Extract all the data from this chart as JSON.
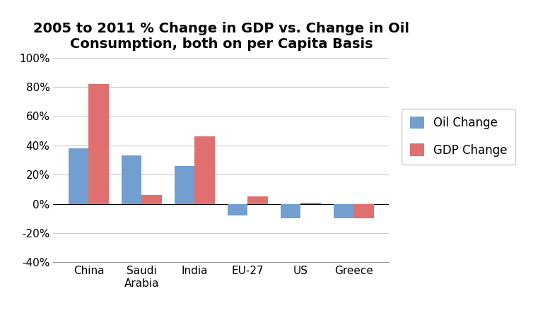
{
  "categories": [
    "China",
    "Saudi\nArabia",
    "India",
    "EU-27",
    "US",
    "Greece"
  ],
  "oil_change": [
    0.38,
    0.33,
    0.26,
    -0.08,
    -0.1,
    -0.1
  ],
  "gdp_change": [
    0.82,
    0.06,
    0.46,
    0.05,
    0.01,
    -0.1
  ],
  "oil_color": "#729fcf",
  "gdp_color": "#e07070",
  "title_line1": "2005 to 2011 % Change in GDP vs. Change in Oil",
  "title_line2": "Consumption, both on per Capita Basis",
  "legend_oil": "Oil Change",
  "legend_gdp": "GDP Change",
  "ylim": [
    -0.4,
    1.0
  ],
  "yticks": [
    -0.4,
    -0.2,
    0.0,
    0.2,
    0.4,
    0.6,
    0.8,
    1.0
  ],
  "bar_width": 0.38,
  "background_color": "#ffffff",
  "title_fontsize": 14,
  "tick_fontsize": 11,
  "legend_fontsize": 12
}
